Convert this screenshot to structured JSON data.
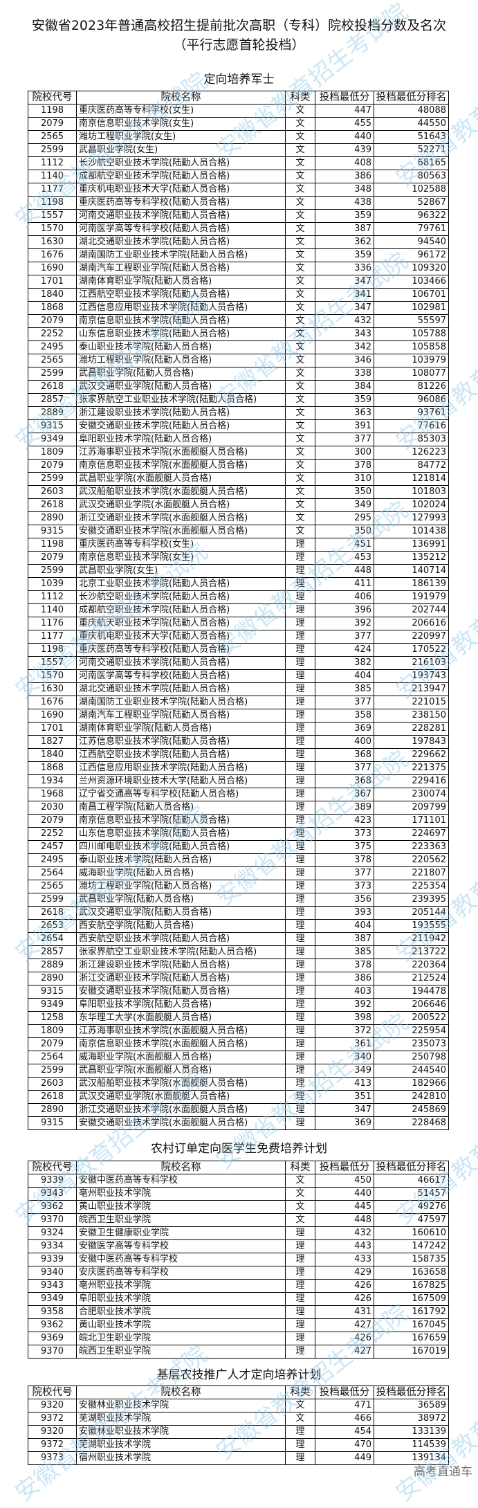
{
  "title_line1": "安徽省2023年普通高校招生提前批次高职（专科）院校投档分数及名次",
  "title_line2": "（平行志愿首轮投档）",
  "columns": [
    "院校代号",
    "院校名称",
    "科类",
    "投档最低分",
    "投档最低分排名"
  ],
  "sections": [
    {
      "title": "定向培养军士",
      "rows": [
        [
          "1198",
          "重庆医药高等专科学校(女生)",
          "文",
          "447",
          "48088"
        ],
        [
          "2079",
          "南京信息职业技术学院(女生)",
          "文",
          "455",
          "44550"
        ],
        [
          "2565",
          "潍坊工程职业学院(女生)",
          "文",
          "440",
          "51643"
        ],
        [
          "2599",
          "武昌职业学院(女生)",
          "文",
          "439",
          "52271"
        ],
        [
          "1112",
          "长沙航空职业技术学院(陆勤人员合格)",
          "文",
          "408",
          "68165"
        ],
        [
          "1140",
          "成都航空职业技术学院(陆勤人员合格)",
          "文",
          "386",
          "80563"
        ],
        [
          "1177",
          "重庆机电职业技术大学(陆勤人员合格)",
          "文",
          "348",
          "102588"
        ],
        [
          "1198",
          "重庆医药高等专科学校(陆勤人员合格)",
          "文",
          "438",
          "52867"
        ],
        [
          "1557",
          "河南交通职业技术学院(陆勤人员合格)",
          "文",
          "359",
          "96322"
        ],
        [
          "1570",
          "河南医学高等专科学校(陆勤人员合格)",
          "文",
          "387",
          "79761"
        ],
        [
          "1630",
          "湖北交通职业技术学院(陆勤人员合格)",
          "文",
          "362",
          "94540"
        ],
        [
          "1676",
          "湖南国防工业职业技术学院(陆勤人员合格)",
          "文",
          "359",
          "96172"
        ],
        [
          "1690",
          "湖南汽车工程职业学院(陆勤人员合格)",
          "文",
          "336",
          "109320"
        ],
        [
          "1701",
          "湖南体育职业学院(陆勤人员合格)",
          "文",
          "347",
          "103466"
        ],
        [
          "1840",
          "江西航空职业技术学院(陆勤人员合格)",
          "文",
          "341",
          "106701"
        ],
        [
          "1868",
          "江西信息应用职业技术学院(陆勤人员合格)",
          "文",
          "347",
          "102981"
        ],
        [
          "2079",
          "南京信息职业技术学院(陆勤人员合格)",
          "文",
          "432",
          "55597"
        ],
        [
          "2252",
          "山东信息职业技术学院(陆勤人员合格)",
          "文",
          "343",
          "105788"
        ],
        [
          "2495",
          "泰山职业技术学院(陆勤人员合格)",
          "文",
          "342",
          "105858"
        ],
        [
          "2565",
          "潍坊工程职业学院(陆勤人员合格)",
          "文",
          "346",
          "103979"
        ],
        [
          "2599",
          "武昌职业学院(陆勤人员合格)",
          "文",
          "338",
          "108077"
        ],
        [
          "2618",
          "武汉交通职业学院(陆勤人员合格)",
          "文",
          "384",
          "81226"
        ],
        [
          "2857",
          "张家界航空工业职业技术学院(陆勤人员合格)",
          "文",
          "359",
          "96086"
        ],
        [
          "2889",
          "浙江建设职业技术学院(陆勤人员合格)",
          "文",
          "363",
          "93761"
        ],
        [
          "9315",
          "安徽交通职业技术学院(陆勤人员合格)",
          "文",
          "391",
          "77616"
        ],
        [
          "9349",
          "阜阳职业技术学院(陆勤人员合格)",
          "文",
          "377",
          "85303"
        ],
        [
          "1809",
          "江苏海事职业技术学院(水面舰艇人员合格)",
          "文",
          "300",
          "126223"
        ],
        [
          "2079",
          "南京信息职业技术学院(水面舰艇人员合格)",
          "文",
          "378",
          "84772"
        ],
        [
          "2599",
          "武昌职业学院(水面舰艇人员合格)",
          "文",
          "310",
          "121814"
        ],
        [
          "2603",
          "武汉船舶职业技术学院(水面舰艇人员合格)",
          "文",
          "350",
          "101803"
        ],
        [
          "2618",
          "武汉交通职业学院(水面舰艇人员合格)",
          "文",
          "349",
          "102024"
        ],
        [
          "2890",
          "浙江交通职业技术学院(水面舰艇人员合格)",
          "文",
          "295",
          "127993"
        ],
        [
          "9315",
          "安徽交通职业技术学院(水面舰艇人员合格)",
          "文",
          "350",
          "101438"
        ],
        [
          "1198",
          "重庆医药高等专科学校(女生)",
          "理",
          "451",
          "136991"
        ],
        [
          "2079",
          "南京信息职业技术学院(女生)",
          "理",
          "453",
          "135212"
        ],
        [
          "2599",
          "武昌职业学院(女生)",
          "理",
          "448",
          "140714"
        ],
        [
          "1039",
          "北京工业职业技术学院(陆勤人员合格)",
          "理",
          "411",
          "186139"
        ],
        [
          "1112",
          "长沙航空职业技术学院(陆勤人员合格)",
          "理",
          "406",
          "191979"
        ],
        [
          "1140",
          "成都航空职业技术学院(陆勤人员合格)",
          "理",
          "396",
          "202744"
        ],
        [
          "1176",
          "重庆航天职业技术学院(陆勤人员合格)",
          "理",
          "392",
          "206616"
        ],
        [
          "1177",
          "重庆机电职业技术大学(陆勤人员合格)",
          "理",
          "377",
          "220997"
        ],
        [
          "1198",
          "重庆医药高等专科学校(陆勤人员合格)",
          "理",
          "424",
          "170522"
        ],
        [
          "1557",
          "河南交通职业技术学院(陆勤人员合格)",
          "理",
          "382",
          "216103"
        ],
        [
          "1570",
          "河南医学高等专科学校(陆勤人员合格)",
          "理",
          "404",
          "193743"
        ],
        [
          "1630",
          "湖北交通职业技术学院(陆勤人员合格)",
          "理",
          "385",
          "213947"
        ],
        [
          "1676",
          "湖南国防工业职业技术学院(陆勤人员合格)",
          "理",
          "377",
          "221015"
        ],
        [
          "1690",
          "湖南汽车工程职业学院(陆勤人员合格)",
          "理",
          "358",
          "238150"
        ],
        [
          "1701",
          "湖南体育职业学院(陆勤人员合格)",
          "理",
          "369",
          "228281"
        ],
        [
          "1827",
          "江苏信息职业技术学院(陆勤人员合格)",
          "理",
          "400",
          "197843"
        ],
        [
          "1840",
          "江西航空职业技术学院(陆勤人员合格)",
          "理",
          "368",
          "229662"
        ],
        [
          "1868",
          "江西信息应用职业技术学院(陆勤人员合格)",
          "理",
          "377",
          "221375"
        ],
        [
          "1934",
          "兰州资源环境职业技术大学(陆勤人员合格)",
          "理",
          "368",
          "229416"
        ],
        [
          "1968",
          "辽宁省交通高等专科学校(陆勤人员合格)",
          "理",
          "367",
          "230074"
        ],
        [
          "2030",
          "南昌工程学院(陆勤人员合格)",
          "理",
          "389",
          "209799"
        ],
        [
          "2079",
          "南京信息职业技术学院(陆勤人员合格)",
          "理",
          "423",
          "171101"
        ],
        [
          "2252",
          "山东信息职业技术学院(陆勤人员合格)",
          "理",
          "373",
          "224697"
        ],
        [
          "2457",
          "四川邮电职业技术学院(陆勤人员合格)",
          "理",
          "375",
          "223363"
        ],
        [
          "2495",
          "泰山职业技术学院(陆勤人员合格)",
          "理",
          "378",
          "220562"
        ],
        [
          "2564",
          "威海职业学院(陆勤人员合格)",
          "理",
          "377",
          "221807"
        ],
        [
          "2565",
          "潍坊工程职业学院(陆勤人员合格)",
          "理",
          "373",
          "225354"
        ],
        [
          "2599",
          "武昌职业学院(陆勤人员合格)",
          "理",
          "356",
          "239395"
        ],
        [
          "2618",
          "武汉交通职业学院(陆勤人员合格)",
          "理",
          "393",
          "205144"
        ],
        [
          "2653",
          "西安航空学院(陆勤人员合格)",
          "理",
          "404",
          "193555"
        ],
        [
          "2654",
          "西安航空职业技术学院(陆勤人员合格)",
          "理",
          "387",
          "211942"
        ],
        [
          "2857",
          "张家界航空工业职业技术学院(陆勤人员合格)",
          "理",
          "385",
          "213722"
        ],
        [
          "2889",
          "浙江建设职业技术学院(陆勤人员合格)",
          "理",
          "378",
          "220364"
        ],
        [
          "2890",
          "浙江交通职业技术学院(陆勤人员合格)",
          "理",
          "386",
          "212524"
        ],
        [
          "9315",
          "安徽交通职业技术学院(陆勤人员合格)",
          "理",
          "403",
          "194478"
        ],
        [
          "9349",
          "阜阳职业技术学院(陆勤人员合格)",
          "理",
          "392",
          "206646"
        ],
        [
          "1258",
          "东华理工大学(水面舰艇人员合格)",
          "理",
          "398",
          "200522"
        ],
        [
          "1809",
          "江苏海事职业技术学院(水面舰艇人员合格)",
          "理",
          "372",
          "225954"
        ],
        [
          "2079",
          "南京信息职业技术学院(水面舰艇人员合格)",
          "理",
          "361",
          "235073"
        ],
        [
          "2564",
          "威海职业学院(水面舰艇人员合格)",
          "理",
          "340",
          "250798"
        ],
        [
          "2599",
          "武昌职业学院(水面舰艇人员合格)",
          "理",
          "349",
          "244540"
        ],
        [
          "2603",
          "武汉船舶职业技术学院(水面舰艇人员合格)",
          "理",
          "413",
          "182966"
        ],
        [
          "2618",
          "武汉交通职业学院(水面舰艇人员合格)",
          "理",
          "351",
          "242810"
        ],
        [
          "2890",
          "浙江交通职业技术学院(水面舰艇人员合格)",
          "理",
          "347",
          "245869"
        ],
        [
          "9315",
          "安徽交通职业技术学院(水面舰艇人员合格)",
          "理",
          "369",
          "228468"
        ]
      ]
    },
    {
      "title": "农村订单定向医学生免费培养计划",
      "rows": [
        [
          "9339",
          "安徽中医药高等专科学校",
          "文",
          "450",
          "46617"
        ],
        [
          "9343",
          "亳州职业技术学院",
          "文",
          "440",
          "51457"
        ],
        [
          "9362",
          "黄山职业技术学院",
          "文",
          "445",
          "49276"
        ],
        [
          "9370",
          "皖西卫生职业学院",
          "文",
          "448",
          "47597"
        ],
        [
          "9324",
          "安徽卫生健康职业学院",
          "理",
          "432",
          "160610"
        ],
        [
          "9334",
          "安徽医学高等专科学校",
          "理",
          "443",
          "147242"
        ],
        [
          "9339",
          "安徽中医药高等专科学校",
          "理",
          "433",
          "158735"
        ],
        [
          "9340",
          "安庆医药高等专科学校",
          "理",
          "429",
          "163658"
        ],
        [
          "9343",
          "亳州职业技术学院",
          "理",
          "426",
          "167825"
        ],
        [
          "9349",
          "阜阳职业技术学院",
          "理",
          "426",
          "167509"
        ],
        [
          "9358",
          "合肥职业技术学院",
          "理",
          "431",
          "161792"
        ],
        [
          "9362",
          "黄山职业技术学院",
          "理",
          "427",
          "167045"
        ],
        [
          "9369",
          "皖北卫生职业学院",
          "理",
          "426",
          "167659"
        ],
        [
          "9370",
          "皖西卫生职业学院",
          "理",
          "427",
          "167019"
        ]
      ]
    },
    {
      "title": "基层农技推广人才定向培养计划",
      "rows": [
        [
          "9320",
          "安徽林业职业技术学院",
          "文",
          "471",
          "36589"
        ],
        [
          "9372",
          "芜湖职业技术学院",
          "文",
          "466",
          "38972"
        ],
        [
          "9320",
          "安徽林业职业技术学院",
          "理",
          "454",
          "133139"
        ],
        [
          "9372",
          "芜湖职业技术学院",
          "理",
          "470",
          "114539"
        ],
        [
          "9373",
          "宿州职业技术学院",
          "理",
          "449",
          "139134"
        ]
      ]
    }
  ],
  "watermark": "安徽省教育招生考试院",
  "footer_brand": "高考直通车",
  "colors": {
    "watermark": "#8fc8ea",
    "border": "#000000"
  }
}
